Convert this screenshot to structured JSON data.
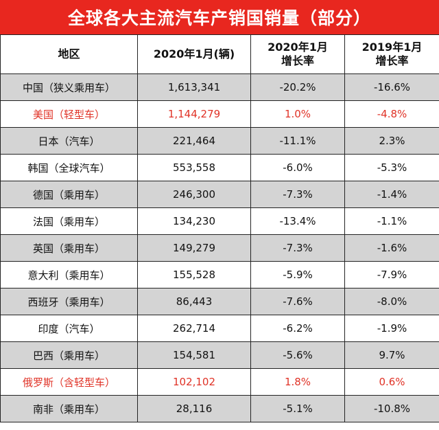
{
  "title": "全球各大主流汽车产销国销量（部分）",
  "headers": {
    "region": "地区",
    "sales": "2020年1月(辆)",
    "growth2020_line1": "2020年1月",
    "growth2020_line2": "增长率",
    "growth2019_line1": "2019年1月",
    "growth2019_line2": "增长率"
  },
  "highlight_color": "#e03226",
  "rows": [
    {
      "region": "中国（狭义乘用车）",
      "sales": "1,613,341",
      "growth2020": "-20.2%",
      "growth2019": "-16.6%",
      "highlight": false
    },
    {
      "region": "美国（轻型车）",
      "sales": "1,144,279",
      "growth2020": "1.0%",
      "growth2019": "-4.8%",
      "highlight": true
    },
    {
      "region": "日本（汽车）",
      "sales": "221,464",
      "growth2020": "-11.1%",
      "growth2019": "2.3%",
      "highlight": false
    },
    {
      "region": "韩国（全球汽车）",
      "sales": "553,558",
      "growth2020": "-6.0%",
      "growth2019": "-5.3%",
      "highlight": false
    },
    {
      "region": "德国（乘用车）",
      "sales": "246,300",
      "growth2020": "-7.3%",
      "growth2019": "-1.4%",
      "highlight": false
    },
    {
      "region": "法国（乘用车）",
      "sales": "134,230",
      "growth2020": "-13.4%",
      "growth2019": "-1.1%",
      "highlight": false
    },
    {
      "region": "英国（乘用车）",
      "sales": "149,279",
      "growth2020": "-7.3%",
      "growth2019": "-1.6%",
      "highlight": false
    },
    {
      "region": "意大利（乘用车）",
      "sales": "155,528",
      "growth2020": "-5.9%",
      "growth2019": "-7.9%",
      "highlight": false
    },
    {
      "region": "西班牙（乘用车）",
      "sales": "86,443",
      "growth2020": "-7.6%",
      "growth2019": "-8.0%",
      "highlight": false
    },
    {
      "region": "印度（汽车）",
      "sales": "262,714",
      "growth2020": "-6.2%",
      "growth2019": "-1.9%",
      "highlight": false
    },
    {
      "region": "巴西（乘用车）",
      "sales": "154,581",
      "growth2020": "-5.6%",
      "growth2019": "9.7%",
      "highlight": false
    },
    {
      "region": "俄罗斯（含轻型车）",
      "sales": "102,102",
      "growth2020": "1.8%",
      "growth2019": "0.6%",
      "highlight": true
    },
    {
      "region": "南非（乘用车）",
      "sales": "28,116",
      "growth2020": "-5.1%",
      "growth2019": "-10.8%",
      "highlight": false
    }
  ]
}
